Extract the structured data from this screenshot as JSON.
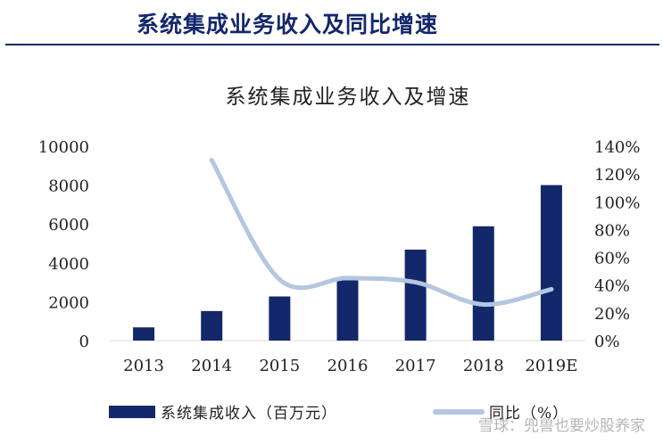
{
  "header": {
    "title": "系统集成业务收入及同比增速"
  },
  "watermark": "雪球：兜兽也要炒股养家",
  "chart_data": {
    "type": "bar",
    "title": "系统集成业务收入及增速",
    "categories": [
      "2013",
      "2014",
      "2015",
      "2016",
      "2017",
      "2018",
      "2019E"
    ],
    "series": [
      {
        "name": "系统集成收入（百万元）",
        "type": "bar",
        "axis": "left",
        "color": "#13286b",
        "values": [
          680,
          1520,
          2270,
          3100,
          4680,
          5880,
          8000
        ]
      },
      {
        "name": "同比（%）",
        "type": "line",
        "axis": "right",
        "color": "#b4c6e0",
        "values": [
          null,
          130,
          44,
          45,
          42,
          26,
          37
        ]
      }
    ],
    "y_left": {
      "ylim": [
        0,
        10000
      ],
      "ticks": [
        "0",
        "2000",
        "4000",
        "6000",
        "8000",
        "10000"
      ]
    },
    "y_right": {
      "ylim": [
        0,
        140
      ],
      "ticks": [
        "0%",
        "20%",
        "40%",
        "60%",
        "80%",
        "100%",
        "120%",
        "140%"
      ]
    },
    "legend_position": "bottom",
    "grid": false
  }
}
